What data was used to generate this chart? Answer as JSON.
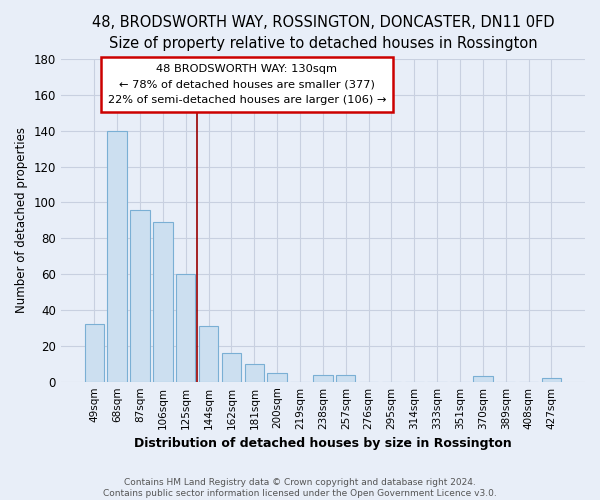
{
  "title": "48, BRODSWORTH WAY, ROSSINGTON, DONCASTER, DN11 0FD",
  "subtitle": "Size of property relative to detached houses in Rossington",
  "xlabel": "Distribution of detached houses by size in Rossington",
  "ylabel": "Number of detached properties",
  "bar_labels": [
    "49sqm",
    "68sqm",
    "87sqm",
    "106sqm",
    "125sqm",
    "144sqm",
    "162sqm",
    "181sqm",
    "200sqm",
    "219sqm",
    "238sqm",
    "257sqm",
    "276sqm",
    "295sqm",
    "314sqm",
    "333sqm",
    "351sqm",
    "370sqm",
    "389sqm",
    "408sqm",
    "427sqm"
  ],
  "bar_values": [
    32,
    140,
    96,
    89,
    60,
    31,
    16,
    10,
    5,
    0,
    4,
    4,
    0,
    0,
    0,
    0,
    0,
    3,
    0,
    0,
    2
  ],
  "bar_face_color": "#ccdff0",
  "bar_edge_color": "#7aafd4",
  "vline_x": 4.5,
  "vline_color": "#990000",
  "ylim": [
    0,
    180
  ],
  "yticks": [
    0,
    20,
    40,
    60,
    80,
    100,
    120,
    140,
    160,
    180
  ],
  "annotation_title": "48 BRODSWORTH WAY: 130sqm",
  "annotation_line1": "← 78% of detached houses are smaller (377)",
  "annotation_line2": "22% of semi-detached houses are larger (106) →",
  "annotation_box_color": "#ffffff",
  "annotation_box_edge": "#cc0000",
  "footer_line1": "Contains HM Land Registry data © Crown copyright and database right 2024.",
  "footer_line2": "Contains public sector information licensed under the Open Government Licence v3.0.",
  "bg_color": "#e8eef8",
  "grid_color": "#c8d0e0",
  "title_fontsize": 10.5,
  "subtitle_fontsize": 9.5
}
